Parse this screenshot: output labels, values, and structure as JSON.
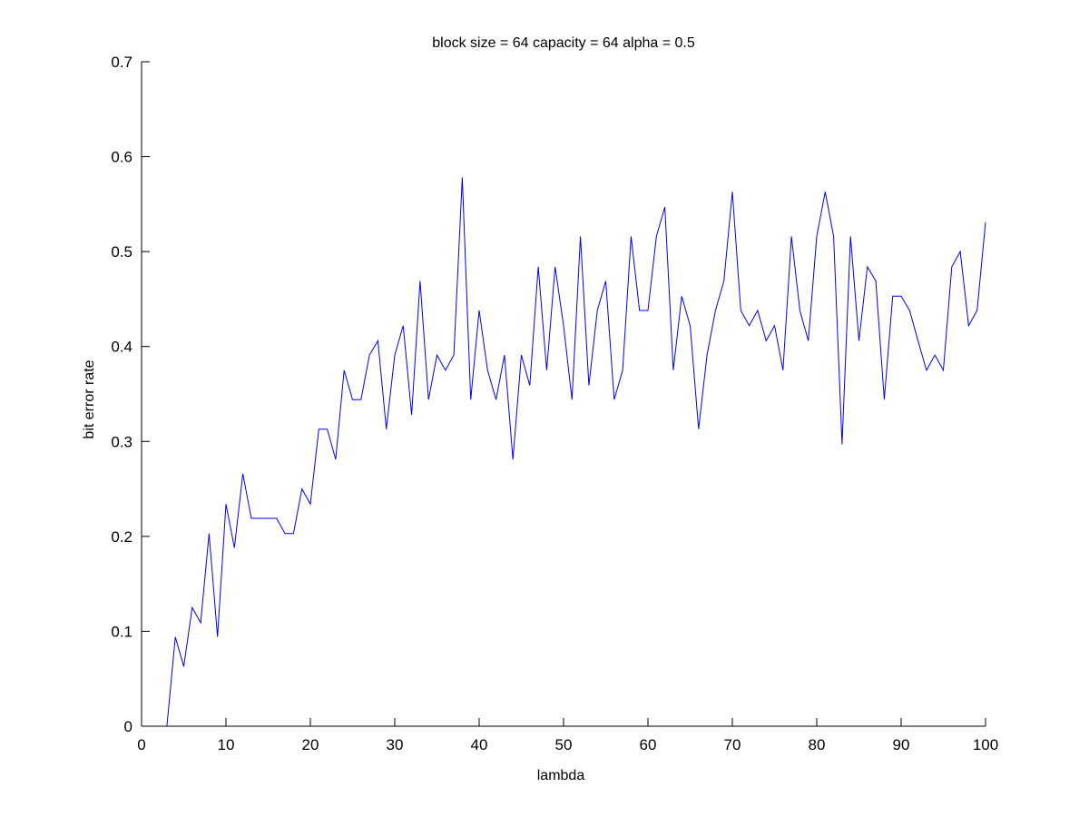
{
  "chart_data": {
    "type": "line",
    "title": "block size = 64  capacity = 64  alpha = 0.5",
    "xlabel": "lambda",
    "ylabel": "bit error rate",
    "xlim": [
      0,
      100
    ],
    "ylim": [
      0,
      0.7
    ],
    "xticks": [
      0,
      10,
      20,
      30,
      40,
      50,
      60,
      70,
      80,
      90,
      100
    ],
    "yticks": [
      0,
      0.1,
      0.2,
      0.3,
      0.4,
      0.5,
      0.6,
      0.7
    ],
    "xtick_labels": [
      "0",
      "10",
      "20",
      "30",
      "40",
      "50",
      "60",
      "70",
      "80",
      "90",
      "100"
    ],
    "ytick_labels": [
      "0",
      "0.1",
      "0.2",
      "0.3",
      "0.4",
      "0.5",
      "0.6",
      "0.7"
    ],
    "grid": false,
    "line_color": "#0000ff",
    "series": [
      {
        "x": [
          1,
          2,
          3,
          4,
          5,
          6,
          7,
          8,
          9,
          10,
          11,
          12,
          13,
          14,
          15,
          16,
          17,
          18,
          19,
          20,
          21,
          22,
          23,
          24,
          25,
          26,
          27,
          28,
          29,
          30,
          31,
          32,
          33,
          34,
          35,
          36,
          37,
          38,
          39,
          40,
          41,
          42,
          43,
          44,
          45,
          46,
          47,
          48,
          49,
          50,
          51,
          52,
          53,
          54,
          55,
          56,
          57,
          58,
          59,
          60,
          61,
          62,
          63,
          64,
          65,
          66,
          67,
          68,
          69,
          70,
          71,
          72,
          73,
          74,
          75,
          76,
          77,
          78,
          79,
          80,
          81,
          82,
          83,
          84,
          85,
          86,
          87,
          88,
          89,
          90,
          91,
          92,
          93,
          94,
          95,
          96,
          97,
          98,
          99,
          100
        ],
        "values": [
          0,
          0,
          0,
          0.094,
          0.063,
          0.125,
          0.109,
          0.203,
          0.094,
          0.234,
          0.188,
          0.266,
          0.219,
          0.219,
          0.219,
          0.219,
          0.203,
          0.203,
          0.25,
          0.234,
          0.313,
          0.313,
          0.281,
          0.375,
          0.344,
          0.344,
          0.391,
          0.406,
          0.313,
          0.391,
          0.422,
          0.328,
          0.469,
          0.344,
          0.391,
          0.375,
          0.391,
          0.578,
          0.344,
          0.438,
          0.375,
          0.344,
          0.391,
          0.281,
          0.391,
          0.359,
          0.484,
          0.375,
          0.484,
          0.422,
          0.344,
          0.516,
          0.359,
          0.438,
          0.469,
          0.344,
          0.375,
          0.516,
          0.438,
          0.438,
          0.516,
          0.547,
          0.375,
          0.453,
          0.422,
          0.313,
          0.391,
          0.438,
          0.469,
          0.563,
          0.438,
          0.422,
          0.438,
          0.406,
          0.422,
          0.375,
          0.516,
          0.438,
          0.406,
          0.516,
          0.563,
          0.516,
          0.297,
          0.516,
          0.406,
          0.484,
          0.469,
          0.344,
          0.453,
          0.453,
          0.438,
          0.406,
          0.375,
          0.391,
          0.375,
          0.484,
          0.5,
          0.422,
          0.438,
          0.531
        ]
      }
    ]
  }
}
